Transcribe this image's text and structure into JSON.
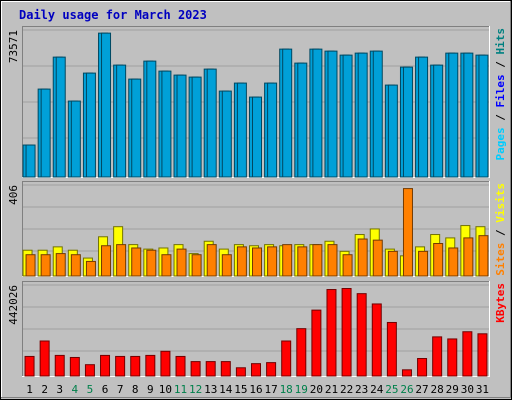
{
  "chart_data": {
    "type": "bar",
    "title": "Daily usage for March 2023",
    "categories": [
      "1",
      "2",
      "3",
      "4",
      "5",
      "6",
      "7",
      "8",
      "9",
      "10",
      "11",
      "12",
      "13",
      "14",
      "15",
      "16",
      "17",
      "18",
      "19",
      "20",
      "21",
      "22",
      "23",
      "24",
      "25",
      "26",
      "27",
      "28",
      "29",
      "30",
      "31"
    ],
    "weekend_days": [
      "4",
      "5",
      "11",
      "12",
      "18",
      "19",
      "25",
      "26"
    ],
    "panels": [
      {
        "id": "hits",
        "ymax": 73571,
        "ymax_label": "73571",
        "axis_labels": [
          {
            "text": "Hits",
            "color": "#008080"
          },
          {
            "text": "Files",
            "color": "#0000ff"
          },
          {
            "text": "Pages",
            "color": "#00ccff"
          }
        ],
        "series": [
          {
            "name": "Hits",
            "color": "#00a0d8",
            "values": [
              16000,
              44000,
              60000,
              38000,
              52000,
              72000,
              56000,
              49000,
              58000,
              53000,
              51000,
              50000,
              54000,
              43000,
              47000,
              40000,
              47000,
              64000,
              57000,
              64000,
              63000,
              61000,
              62000,
              63000,
              46000,
              55000,
              60000,
              56000,
              62000,
              62000,
              61000
            ]
          },
          {
            "name": "Files",
            "color": "#00a0d8",
            "values": [
              16000,
              44000,
              60000,
              38000,
              52000,
              72000,
              56000,
              49000,
              58000,
              53000,
              51000,
              50000,
              54000,
              43000,
              47000,
              40000,
              47000,
              64000,
              57000,
              64000,
              63000,
              61000,
              62000,
              63000,
              46000,
              55000,
              60000,
              56000,
              62000,
              62000,
              61000
            ]
          }
        ]
      },
      {
        "id": "visits",
        "ymax": 406,
        "ymax_label": "406",
        "axis_labels": [
          {
            "text": "Visits",
            "color": "#ffff00"
          },
          {
            "text": "Sites",
            "color": "#ff8000"
          }
        ],
        "series": [
          {
            "name": "Visits",
            "color": "#ffff00",
            "values": [
              115,
              115,
              130,
              115,
              80,
              175,
              220,
              140,
              120,
              125,
              140,
              100,
              155,
              120,
              140,
              135,
              140,
              135,
              140,
              140,
              155,
              110,
              185,
              210,
              120,
              90,
              130,
              185,
              170,
              225,
              220
            ]
          },
          {
            "name": "Sites",
            "color": "#ff8000",
            "values": [
              95,
              95,
              100,
              95,
              65,
              135,
              140,
              125,
              115,
              95,
              120,
              95,
              140,
              95,
              130,
              125,
              130,
              140,
              130,
              140,
              140,
              95,
              165,
              160,
              110,
              390,
              110,
              145,
              125,
              170,
              180
            ]
          }
        ]
      },
      {
        "id": "kbytes",
        "ymax": 442026,
        "ymax_label": "442026",
        "axis_labels": [
          {
            "text": "KBytes",
            "color": "#ff0000"
          }
        ],
        "series": [
          {
            "name": "KBytes",
            "color": "#ff0000",
            "values": [
              95000,
              170000,
              100000,
              90000,
              55000,
              100000,
              95000,
              95000,
              100000,
              120000,
              95000,
              70000,
              70000,
              70000,
              40000,
              60000,
              65000,
              170000,
              230000,
              320000,
              420000,
              425000,
              400000,
              350000,
              260000,
              30000,
              85000,
              190000,
              180000,
              215000,
              205000
            ]
          }
        ]
      }
    ]
  }
}
